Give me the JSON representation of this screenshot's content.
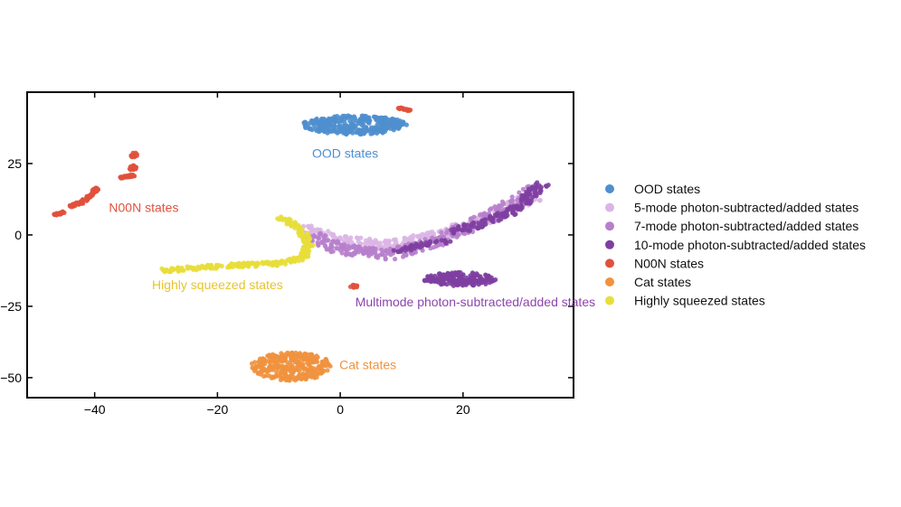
{
  "chart_data": {
    "type": "scatter",
    "title": "",
    "xlabel": "",
    "ylabel": "",
    "xlim": [
      -51,
      38
    ],
    "ylim": [
      -57,
      50
    ],
    "grid": false,
    "legend_position": "right",
    "xticks": [
      {
        "value": -40,
        "label": "−40"
      },
      {
        "value": -20,
        "label": "−20"
      },
      {
        "value": 0,
        "label": "0"
      },
      {
        "value": 20,
        "label": "20"
      }
    ],
    "yticks": [
      {
        "value": 25,
        "label": "25"
      },
      {
        "value": 0,
        "label": "0"
      },
      {
        "value": -25,
        "label": "−25"
      },
      {
        "value": -50,
        "label": "−50"
      }
    ],
    "series": [
      {
        "name": "OOD states",
        "color": "#4f8fce",
        "clusters": [
          {
            "shape": "blob",
            "cx": 2.3,
            "cy": 38.5,
            "rx": 8.5,
            "ry": 3.3,
            "n": 320
          }
        ]
      },
      {
        "name": "5-mode photon-subtracted/added states",
        "color": "#dcb5e4",
        "clusters": [
          {
            "shape": "band",
            "points": [
              [
                -6,
                3
              ],
              [
                0,
                -2
              ],
              [
                8,
                -4
              ],
              [
                16,
                0
              ],
              [
                24,
                6
              ],
              [
                32,
                14
              ]
            ],
            "width": 3.5,
            "n": 280
          }
        ]
      },
      {
        "name": "7-mode photon-subtracted/added states",
        "color": "#b77fcc",
        "clusters": [
          {
            "shape": "band",
            "points": [
              [
                -5,
                0
              ],
              [
                0,
                -5
              ],
              [
                8,
                -7
              ],
              [
                16,
                -2
              ],
              [
                24,
                6
              ],
              [
                32,
                16
              ]
            ],
            "width": 3.5,
            "n": 330
          }
        ]
      },
      {
        "name": "10-mode photon-subtracted/added states",
        "color": "#7e3fa1",
        "clusters": [
          {
            "shape": "band",
            "points": [
              [
                18,
                1
              ],
              [
                23,
                4
              ],
              [
                28,
                8
              ],
              [
                33,
                18
              ]
            ],
            "width": 2.5,
            "n": 140
          },
          {
            "shape": "blob",
            "cx": 19.5,
            "cy": -15.5,
            "rx": 6,
            "ry": 2.4,
            "n": 200
          },
          {
            "shape": "band",
            "points": [
              [
                9,
                -6
              ],
              [
                14,
                -3
              ],
              [
                18,
                -2
              ]
            ],
            "width": 1.5,
            "n": 40
          }
        ]
      },
      {
        "name": "N00N states",
        "color": "#e0513c",
        "clusters": [
          {
            "shape": "band",
            "points": [
              [
                -46.5,
                7
              ],
              [
                -45,
                8
              ]
            ],
            "width": 0.6,
            "n": 25
          },
          {
            "shape": "band",
            "points": [
              [
                -44,
                10
              ],
              [
                -42,
                11.5
              ],
              [
                -39.5,
                16.5
              ]
            ],
            "width": 0.8,
            "n": 60
          },
          {
            "shape": "band",
            "points": [
              [
                -36,
                20
              ],
              [
                -33.5,
                21
              ]
            ],
            "width": 0.7,
            "n": 30
          },
          {
            "shape": "blob",
            "cx": -33.8,
            "cy": 23.5,
            "rx": 0.6,
            "ry": 0.9,
            "n": 15
          },
          {
            "shape": "blob",
            "cx": -33.6,
            "cy": 28,
            "rx": 0.6,
            "ry": 0.9,
            "n": 15
          },
          {
            "shape": "band",
            "points": [
              [
                9.5,
                44.5
              ],
              [
                11.5,
                43.5
              ]
            ],
            "width": 0.5,
            "n": 20
          },
          {
            "shape": "blob",
            "cx": 2.2,
            "cy": -18,
            "rx": 0.6,
            "ry": 0.6,
            "n": 8
          }
        ]
      },
      {
        "name": "Cat states",
        "color": "#f0923e",
        "clusters": [
          {
            "shape": "blob",
            "cx": -8,
            "cy": -46,
            "rx": 6.5,
            "ry": 5,
            "n": 300
          }
        ]
      },
      {
        "name": "Highly squeezed states",
        "color": "#e8de3a",
        "clusters": [
          {
            "shape": "band",
            "points": [
              [
                -29,
                -12.5
              ],
              [
                -20,
                -11
              ],
              [
                -10,
                -10
              ],
              [
                -6,
                -8
              ],
              [
                -5,
                -3
              ],
              [
                -7,
                3
              ],
              [
                -10,
                6.5
              ]
            ],
            "width": 1.5,
            "n": 260
          }
        ]
      }
    ],
    "annotations": [
      {
        "text": "OOD states",
        "x": 0.8,
        "y": 27,
        "color": "#4f8fce"
      },
      {
        "text": "N00N states",
        "x": -32,
        "y": 8,
        "color": "#e0513c"
      },
      {
        "text": "Highly squeezed states",
        "x": -20,
        "y": -19,
        "color": "#e8c42a"
      },
      {
        "text": "Multimode photon-subtracted/added states",
        "x": 22,
        "y": -25,
        "color": "#8d45ae"
      },
      {
        "text": "Cat states",
        "x": 4.5,
        "y": -47,
        "color": "#f0923e"
      }
    ]
  }
}
